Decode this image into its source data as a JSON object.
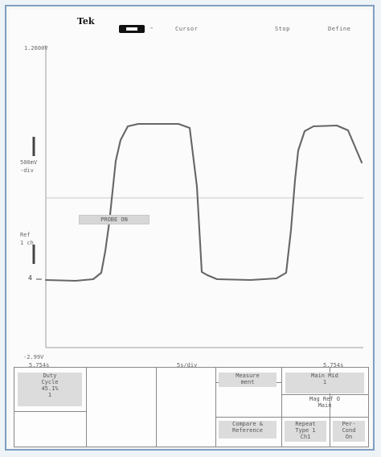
{
  "topbar": {
    "brand": "Tek",
    "run_dash": "-",
    "labels": [
      "Cursor",
      "Stop",
      "Define"
    ]
  },
  "axes": {
    "top_voltage": "1.2600V",
    "bottom_voltage": "-2.99V",
    "left_time": "5.754s",
    "middle_time": "5s/div",
    "right_time": "5.754s"
  },
  "left_readouts": {
    "scale_1": "500mV",
    "scale_1b": "-div",
    "scale_2": "Ref",
    "scale_2b": "1 ch",
    "ground_marker": "4"
  },
  "reference_label": "PROBE ON",
  "colors": {
    "trace": "#666666",
    "grid": "#bdbdbd",
    "menu_shade": "#dcdcdc"
  },
  "menu": {
    "cell_1_title": "Duty",
    "cell_1_line2": "Cycle",
    "cell_1_value": "45.1%",
    "cell_1_extra": "1",
    "cell_measure_title": "Measure",
    "cell_measure_sub": "ment",
    "cell_main_title": "Main Mid",
    "cell_main_value": "1",
    "cell_main_sub": "Mag Ref O",
    "cell_main_sub2": "Main",
    "cell_compare_title": "Compare &",
    "cell_compare_sub": "Reference",
    "cell_repeat_title": "Repeat",
    "cell_repeat_sub": "Type 1",
    "cell_repeat_value": "Ch1",
    "cell_per_title": "Per-",
    "cell_per_sub": "Cond",
    "cell_per_value": "On"
  }
}
